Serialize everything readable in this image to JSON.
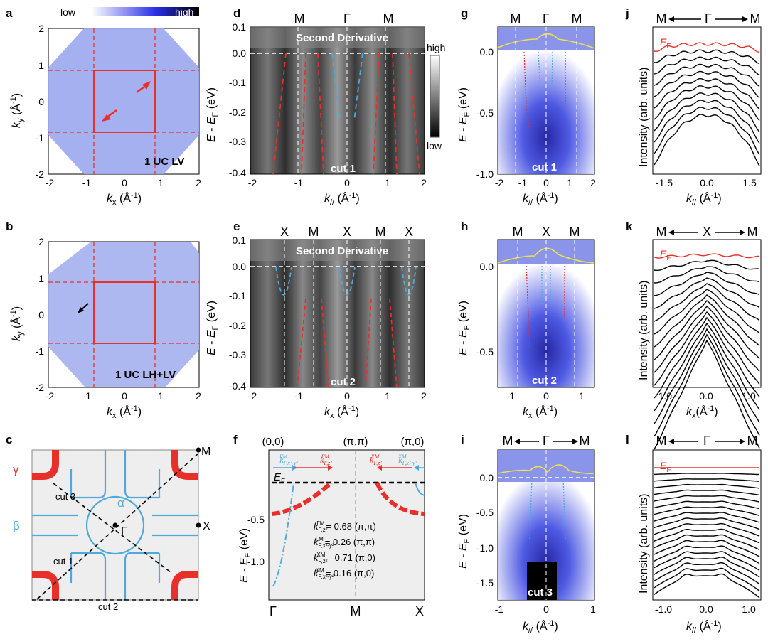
{
  "figure": {
    "panels": {
      "a": {
        "label": "a",
        "sample": "1 UC LV",
        "colorbar": {
          "low": "low",
          "high": "high"
        },
        "xlabel": "k_x (Å⁻¹)",
        "ylabel": "k_y (Å⁻¹)",
        "xticks": [
          "-2",
          "-1",
          "0",
          "1",
          "2"
        ],
        "yticks": [
          "2",
          "1",
          "0",
          "-1",
          "-2"
        ]
      },
      "b": {
        "label": "b",
        "sample": "1 UC LH+LV",
        "xticks": [
          "-2",
          "-1",
          "0",
          "1",
          "2"
        ],
        "yticks": [
          "2",
          "1",
          "0",
          "-1",
          "-2"
        ]
      },
      "c": {
        "label": "c",
        "bands": [
          "γ",
          "β",
          "α"
        ],
        "points": [
          "M",
          "X",
          "Γ"
        ],
        "cuts": [
          "cut 1",
          "cut 2",
          "cut 3"
        ]
      },
      "d": {
        "label": "d",
        "title": "Second Derivative",
        "cut": "cut 1",
        "top": [
          "M",
          "Γ",
          "M"
        ],
        "cbar": {
          "high": "high",
          "low": "low"
        },
        "yticks": [
          "0.1",
          "0.0",
          "-0.1",
          "-0.2",
          "-0.3",
          "-0.4"
        ],
        "xticks": [
          "-2",
          "-1",
          "0",
          "1",
          "2"
        ]
      },
      "e": {
        "label": "e",
        "title": "Second Derivative",
        "cut": "cut 2",
        "top": [
          "X",
          "M",
          "X",
          "M",
          "X"
        ],
        "yticks": [
          "0.1",
          "0.0",
          "-0.1",
          "-0.2",
          "-0.3",
          "-0.4"
        ],
        "xticks": [
          "-2",
          "-1",
          "0",
          "1",
          "2"
        ]
      },
      "f": {
        "label": "f",
        "top": [
          "(0,0)",
          "(π,π)",
          "(π,0)"
        ],
        "bottom": [
          "Γ",
          "M",
          "X"
        ],
        "ef": "E",
        "yticks": [
          "-0.5",
          "-1.0"
        ],
        "kf_list": [
          "= 0.68 (π,π)",
          "= 0.26 (π,π)",
          "= 0.71 (π,0)",
          "= 0.16 (π,0)"
        ]
      },
      "g": {
        "label": "g",
        "cut": "cut 1",
        "top": [
          "M",
          "Γ",
          "M"
        ],
        "yticks": [
          "0.0",
          "-0.5",
          "-1.0"
        ],
        "xticks": [
          "-2",
          "-1",
          "0",
          "1",
          "2"
        ]
      },
      "h": {
        "label": "h",
        "cut": "cut 2",
        "top": [
          "M",
          "X",
          "M"
        ],
        "yticks": [
          "0.0",
          "-0.5"
        ],
        "xticks": [
          "-1",
          "0",
          "1"
        ]
      },
      "i": {
        "label": "i",
        "cut": "cut 3",
        "top": [
          "M",
          "Γ",
          "M"
        ],
        "yticks": [
          "0.0",
          "-0.5",
          "-1.0",
          "-1.5"
        ],
        "xticks": [
          "-1",
          "0",
          "1"
        ]
      },
      "j": {
        "label": "j",
        "top": [
          "M",
          "Γ",
          "M"
        ],
        "ef": "E",
        "ylabel": "Intensity (arb. units)",
        "xticks": [
          "-1.5",
          "0.0",
          "1.5"
        ]
      },
      "k": {
        "label": "k",
        "top": [
          "M",
          "X",
          "M"
        ],
        "ef": "E",
        "xticks": [
          "-1.0",
          "0.0",
          "1.0"
        ]
      },
      "l": {
        "label": "l",
        "top": [
          "M",
          "Γ",
          "M"
        ],
        "ef": "E",
        "xticks": [
          "-1.0",
          "0.0",
          "1.0"
        ]
      }
    },
    "common": {
      "energy_axis": "E - E",
      "kpar": "k",
      "kx": "k",
      "unit_inv_A": "(Å⁻¹)"
    }
  },
  "colors": {
    "red": "#e8302a",
    "blue": "#4fa9dd",
    "yellow": "#f2e04b",
    "arpes": "#2b35e0"
  }
}
